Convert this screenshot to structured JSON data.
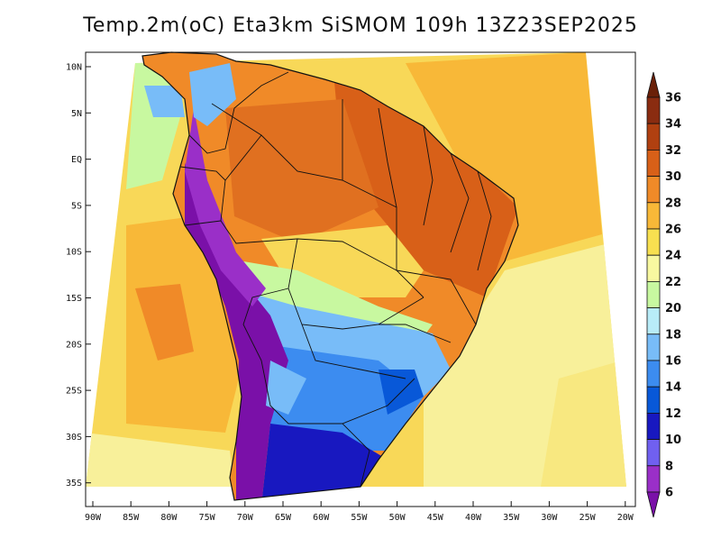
{
  "title": "Temp.2m(oC) Eta3km SiSMOM 109h 13Z23SEP2025",
  "map": {
    "lat_labels": [
      "10N",
      "5N",
      "EQ",
      "5S",
      "10S",
      "15S",
      "20S",
      "25S",
      "30S",
      "35S"
    ],
    "lon_labels": [
      "90W",
      "85W",
      "80W",
      "75W",
      "70W",
      "65W",
      "60W",
      "55W",
      "50W",
      "45W",
      "40W",
      "35W",
      "30W",
      "25W",
      "20W"
    ]
  },
  "colorbar": {
    "levels": [
      "6",
      "8",
      "10",
      "12",
      "14",
      "16",
      "18",
      "20",
      "22",
      "24",
      "26",
      "28",
      "30",
      "32",
      "34",
      "36"
    ],
    "colors": [
      "#7a10a8",
      "#9a2fc8",
      "#7060f0",
      "#1818c0",
      "#0858d8",
      "#3c8cf0",
      "#78bcf8",
      "#b8ecf8",
      "#c8f8a0",
      "#f8f8a0",
      "#f8e050",
      "#f8b838",
      "#f08a28",
      "#d86018",
      "#b04010",
      "#8a2c10",
      "#6a2008"
    ]
  },
  "palette": {
    "ocean_warm": "#f8c040",
    "ocean_mid": "#f8d858",
    "ocean_cool": "#f8f09a",
    "land_hot": "#f08a28",
    "land_veryhot": "#d86018"
  }
}
